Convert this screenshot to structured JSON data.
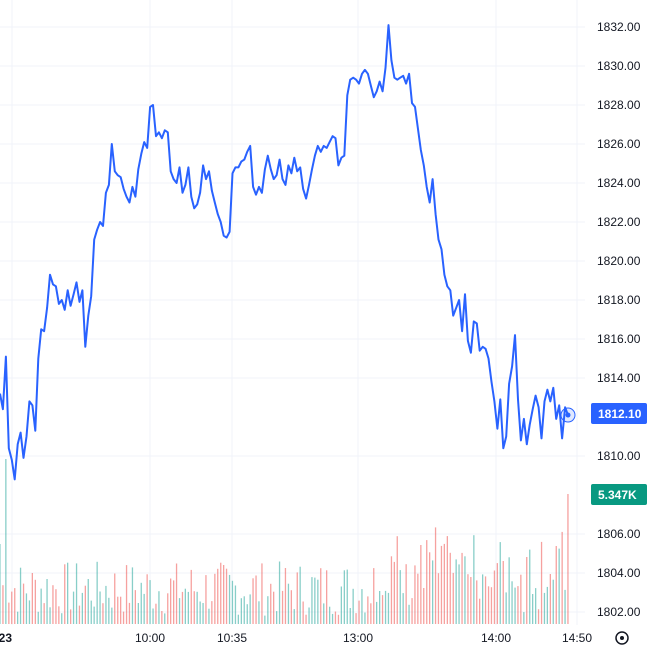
{
  "chart_data": {
    "type": "line",
    "title": "",
    "xlabel": "",
    "ylabel": "",
    "colors": {
      "line": "#2962ff",
      "vol_up": "#26a69a",
      "vol_down": "#ef5350",
      "volume_badge": "#089981"
    },
    "ylim": [
      1800.6,
      1833.4
    ],
    "y_ticks": [
      "1832.00",
      "1830.00",
      "1828.00",
      "1826.00",
      "1824.00",
      "1822.00",
      "1820.00",
      "1818.00",
      "1816.00",
      "1814.00",
      "1810.00",
      "1806.00",
      "1804.00",
      "1802.00"
    ],
    "x_ticks": [
      "23",
      "10:00",
      "10:35",
      "13:00",
      "14:00",
      "14:50"
    ],
    "last_price_label": "1812.10",
    "volume_label": "5.347K",
    "price": [
      1813.2,
      1812.4,
      1815.1,
      1810.4,
      1809.8,
      1808.8,
      1810.6,
      1811.2,
      1809.9,
      1811.0,
      1812.8,
      1812.6,
      1811.3,
      1815.0,
      1816.5,
      1816.4,
      1817.6,
      1819.3,
      1818.8,
      1818.7,
      1817.8,
      1818.0,
      1817.5,
      1818.5,
      1817.7,
      1818.3,
      1818.9,
      1817.9,
      1818.5,
      1815.6,
      1817.2,
      1818.2,
      1821.1,
      1821.6,
      1822.0,
      1821.8,
      1823.5,
      1823.9,
      1826.0,
      1824.6,
      1824.4,
      1824.3,
      1823.7,
      1823.3,
      1823.0,
      1823.8,
      1823.3,
      1824.7,
      1825.5,
      1826.1,
      1825.8,
      1827.9,
      1828.0,
      1826.4,
      1826.6,
      1826.3,
      1826.7,
      1826.6,
      1824.6,
      1824.2,
      1824.0,
      1824.8,
      1823.5,
      1823.9,
      1824.8,
      1823.3,
      1822.7,
      1822.9,
      1823.5,
      1824.9,
      1824.2,
      1824.6,
      1823.6,
      1823.0,
      1822.4,
      1822.0,
      1821.3,
      1821.2,
      1821.5,
      1824.5,
      1824.8,
      1824.8,
      1825.1,
      1825.2,
      1825.6,
      1825.9,
      1823.8,
      1823.4,
      1823.8,
      1823.5,
      1824.7,
      1825.4,
      1824.7,
      1824.2,
      1824.4,
      1825.2,
      1824.2,
      1823.9,
      1824.9,
      1824.5,
      1825.3,
      1824.6,
      1824.8,
      1823.7,
      1823.2,
      1823.9,
      1824.7,
      1825.4,
      1825.9,
      1825.6,
      1825.9,
      1825.8,
      1826.1,
      1826.4,
      1826.3,
      1824.9,
      1825.3,
      1825.4,
      1828.5,
      1829.3,
      1829.4,
      1829.3,
      1829.1,
      1829.6,
      1829.8,
      1829.6,
      1829.0,
      1828.4,
      1828.7,
      1829.2,
      1828.7,
      1829.9,
      1832.1,
      1830.3,
      1829.4,
      1829.3,
      1829.4,
      1829.5,
      1829.1,
      1829.6,
      1828.1,
      1827.9,
      1826.8,
      1825.7,
      1824.9,
      1823.8,
      1823.0,
      1824.2,
      1822.4,
      1821.1,
      1820.6,
      1819.3,
      1818.7,
      1818.5,
      1817.2,
      1817.6,
      1818.0,
      1816.4,
      1818.3,
      1815.9,
      1815.3,
      1816.9,
      1816.8,
      1815.4,
      1815.6,
      1815.5,
      1815.0,
      1813.8,
      1812.8,
      1811.4,
      1812.9,
      1810.4,
      1811.0,
      1813.7,
      1814.6,
      1816.2,
      1812.9,
      1810.8,
      1811.9,
      1810.6,
      1811.6,
      1812.4,
      1813.1,
      1812.5,
      1810.9,
      1812.8,
      1813.4,
      1812.8,
      1813.5,
      1811.9,
      1812.6,
      1810.9,
      1812.5,
      1812.1
    ],
    "volume_labels": [
      "1806.00",
      "1804.00",
      "1802.00"
    ]
  }
}
